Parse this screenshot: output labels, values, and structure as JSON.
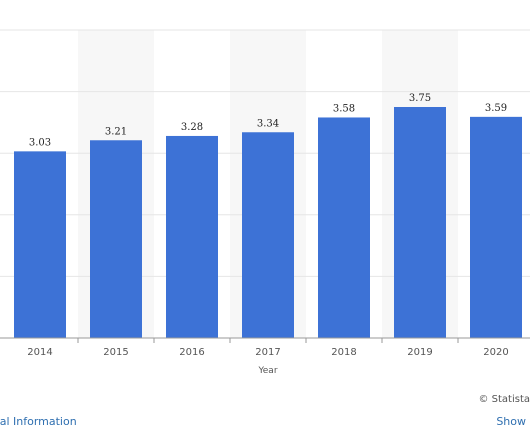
{
  "chart_data": {
    "type": "bar",
    "categories": [
      "2014",
      "2015",
      "2016",
      "2017",
      "2018",
      "2019",
      "2020"
    ],
    "values": [
      3.03,
      3.21,
      3.28,
      3.34,
      3.58,
      3.75,
      3.59
    ],
    "data_labels": [
      "3.03",
      "3.21",
      "3.28",
      "3.34",
      "3.58",
      "3.75",
      "3.59"
    ],
    "xlabel": "Year",
    "ylabel": "",
    "ylim": [
      0,
      5
    ],
    "grid": true,
    "colors": {
      "bar": "#3d72d6",
      "band": "#f7f7f7",
      "grid": "#e6e6e6",
      "axis": "#999999"
    }
  },
  "footer": {
    "credit": "© Statista",
    "additional_info": "onal Information",
    "show_source": "Show"
  }
}
